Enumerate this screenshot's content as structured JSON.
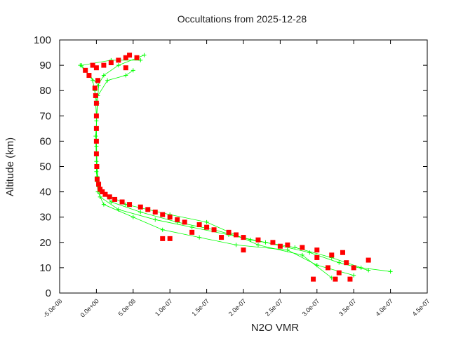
{
  "chart_data": {
    "type": "scatter",
    "title": "Occultations from 2025-12-28",
    "xlabel": "N2O VMR",
    "ylabel": "Altitude (km)",
    "xlim": [
      -5e-08,
      4.5e-07
    ],
    "ylim": [
      0,
      100
    ],
    "xticks": [
      "-5.0e-08",
      "0.0e+00",
      "5.0e-08",
      "1.0e-07",
      "1.5e-07",
      "2.0e-07",
      "2.5e-07",
      "3.0e-07",
      "3.5e-07",
      "4.0e-07",
      "4.5e-07"
    ],
    "xtick_values": [
      -5e-08,
      0,
      5e-08,
      1e-07,
      1.5e-07,
      2e-07,
      2.5e-07,
      3e-07,
      3.5e-07,
      4e-07,
      4.5e-07
    ],
    "yticks": [
      0,
      10,
      20,
      30,
      40,
      50,
      60,
      70,
      80,
      90,
      100
    ],
    "grid": false,
    "colors": {
      "green": "#00ff00",
      "red": "#ff0000"
    },
    "series": [
      {
        "marker": "plus",
        "color": "#00ff00",
        "lines": true,
        "profiles": [
          [
            [
              4e-07,
              8.5
            ],
            [
              3.6e-07,
              10
            ],
            [
              3.2e-07,
              14
            ],
            [
              2.7e-07,
              18
            ],
            [
              2.1e-07,
              21
            ],
            [
              1.6e-07,
              25
            ],
            [
              1.1e-07,
              28
            ],
            [
              6e-08,
              32
            ],
            [
              2e-08,
              36
            ],
            [
              3e-09,
              42
            ],
            [
              1e-09,
              50
            ],
            [
              0,
              60
            ],
            [
              0,
              70
            ],
            [
              -2e-09,
              80
            ],
            [
              1e-08,
              86
            ],
            [
              3e-08,
              90
            ],
            [
              6.5e-08,
              94
            ]
          ],
          [
            [
              3.7e-07,
              9
            ],
            [
              3.3e-07,
              12
            ],
            [
              2.9e-07,
              16
            ],
            [
              2.3e-07,
              20
            ],
            [
              1.8e-07,
              23
            ],
            [
              1.3e-07,
              26
            ],
            [
              8e-08,
              29
            ],
            [
              3e-08,
              33
            ],
            [
              5e-09,
              38
            ],
            [
              1e-09,
              46
            ],
            [
              0,
              55
            ],
            [
              0,
              65
            ],
            [
              1e-09,
              75
            ],
            [
              -5e-09,
              84
            ],
            [
              -2e-08,
              90
            ],
            [
              2e-08,
              92
            ],
            [
              6e-08,
              92
            ]
          ],
          [
            [
              3.5e-07,
              7
            ],
            [
              3e-07,
              11
            ],
            [
              2.6e-07,
              17
            ],
            [
              1.9e-07,
              19
            ],
            [
              1.4e-07,
              22
            ],
            [
              9e-08,
              25
            ],
            [
              5e-08,
              30
            ],
            [
              1e-08,
              35
            ],
            [
              2e-09,
              40
            ],
            [
              0,
              48
            ],
            [
              0,
              58
            ],
            [
              0,
              68
            ],
            [
              2e-09,
              78
            ],
            [
              1.5e-08,
              84
            ],
            [
              4e-08,
              86
            ],
            [
              5e-08,
              88
            ]
          ],
          [
            [
              3.2e-07,
              6
            ],
            [
              2.8e-07,
              15
            ],
            [
              2.2e-07,
              19
            ],
            [
              1.5e-07,
              28
            ],
            [
              1e-07,
              31
            ],
            [
              4e-08,
              35
            ],
            [
              8e-09,
              40
            ],
            [
              1e-09,
              44
            ],
            [
              0,
              52
            ],
            [
              -1e-09,
              62
            ],
            [
              3e-09,
              82
            ],
            [
              -2.2e-08,
              90
            ]
          ]
        ]
      },
      {
        "marker": "square",
        "color": "#ff0000",
        "lines": false,
        "points": [
          [
            2.95e-07,
            5.5
          ],
          [
            3.25e-07,
            5.5
          ],
          [
            3.45e-07,
            5.5
          ],
          [
            3.3e-07,
            8
          ],
          [
            3.5e-07,
            10
          ],
          [
            3.7e-07,
            13
          ],
          [
            3.4e-07,
            12
          ],
          [
            3.2e-07,
            15
          ],
          [
            3e-07,
            17
          ],
          [
            2.8e-07,
            18
          ],
          [
            2.6e-07,
            19
          ],
          [
            2.4e-07,
            20
          ],
          [
            2.2e-07,
            21
          ],
          [
            2e-07,
            22
          ],
          [
            1.9e-07,
            23
          ],
          [
            1.8e-07,
            24
          ],
          [
            1.6e-07,
            25
          ],
          [
            1.5e-07,
            26
          ],
          [
            1.4e-07,
            27
          ],
          [
            1.2e-07,
            28
          ],
          [
            1.1e-07,
            29
          ],
          [
            1e-07,
            30
          ],
          [
            9e-08,
            31
          ],
          [
            8e-08,
            32
          ],
          [
            7e-08,
            33
          ],
          [
            6e-08,
            34
          ],
          [
            4.5e-08,
            35
          ],
          [
            3.5e-08,
            36
          ],
          [
            2.5e-08,
            37
          ],
          [
            1.8e-08,
            38
          ],
          [
            1.2e-08,
            39
          ],
          [
            8e-09,
            40
          ],
          [
            5e-09,
            41
          ],
          [
            3e-09,
            43
          ],
          [
            1e-09,
            45
          ],
          [
            5e-10,
            50
          ],
          [
            0,
            55
          ],
          [
            0,
            60
          ],
          [
            0,
            65
          ],
          [
            0,
            70
          ],
          [
            0,
            75
          ],
          [
            -1e-09,
            78
          ],
          [
            -2e-09,
            81
          ],
          [
            2e-09,
            84
          ],
          [
            -1e-08,
            86
          ],
          [
            -1.5e-08,
            88
          ],
          [
            0,
            89
          ],
          [
            1e-08,
            90
          ],
          [
            2e-08,
            91
          ],
          [
            3e-08,
            92
          ],
          [
            4e-08,
            93
          ],
          [
            4.5e-08,
            94
          ],
          [
            5.5e-08,
            93
          ],
          [
            1e-07,
            21.5
          ],
          [
            9e-08,
            21.5
          ],
          [
            2e-07,
            17
          ],
          [
            3e-07,
            14
          ],
          [
            3.35e-07,
            16
          ],
          [
            3.15e-07,
            10
          ],
          [
            2.5e-07,
            18.5
          ],
          [
            1.7e-07,
            22
          ],
          [
            1.3e-07,
            24
          ],
          [
            -5e-09,
            90
          ],
          [
            4e-08,
            89
          ]
        ]
      }
    ]
  }
}
